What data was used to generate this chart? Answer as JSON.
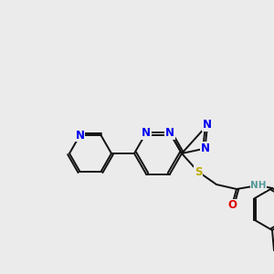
{
  "bg_color": "#ebebeb",
  "cN": "#0000ee",
  "cS": "#bbaa00",
  "cO": "#dd0000",
  "cH": "#559999",
  "cC": "#111111",
  "lw": 1.4,
  "fs": 8.5,
  "fig_w": 3.0,
  "fig_h": 3.0,
  "dpi": 100,
  "xlim": [
    0,
    300
  ],
  "ylim": [
    0,
    300
  ]
}
